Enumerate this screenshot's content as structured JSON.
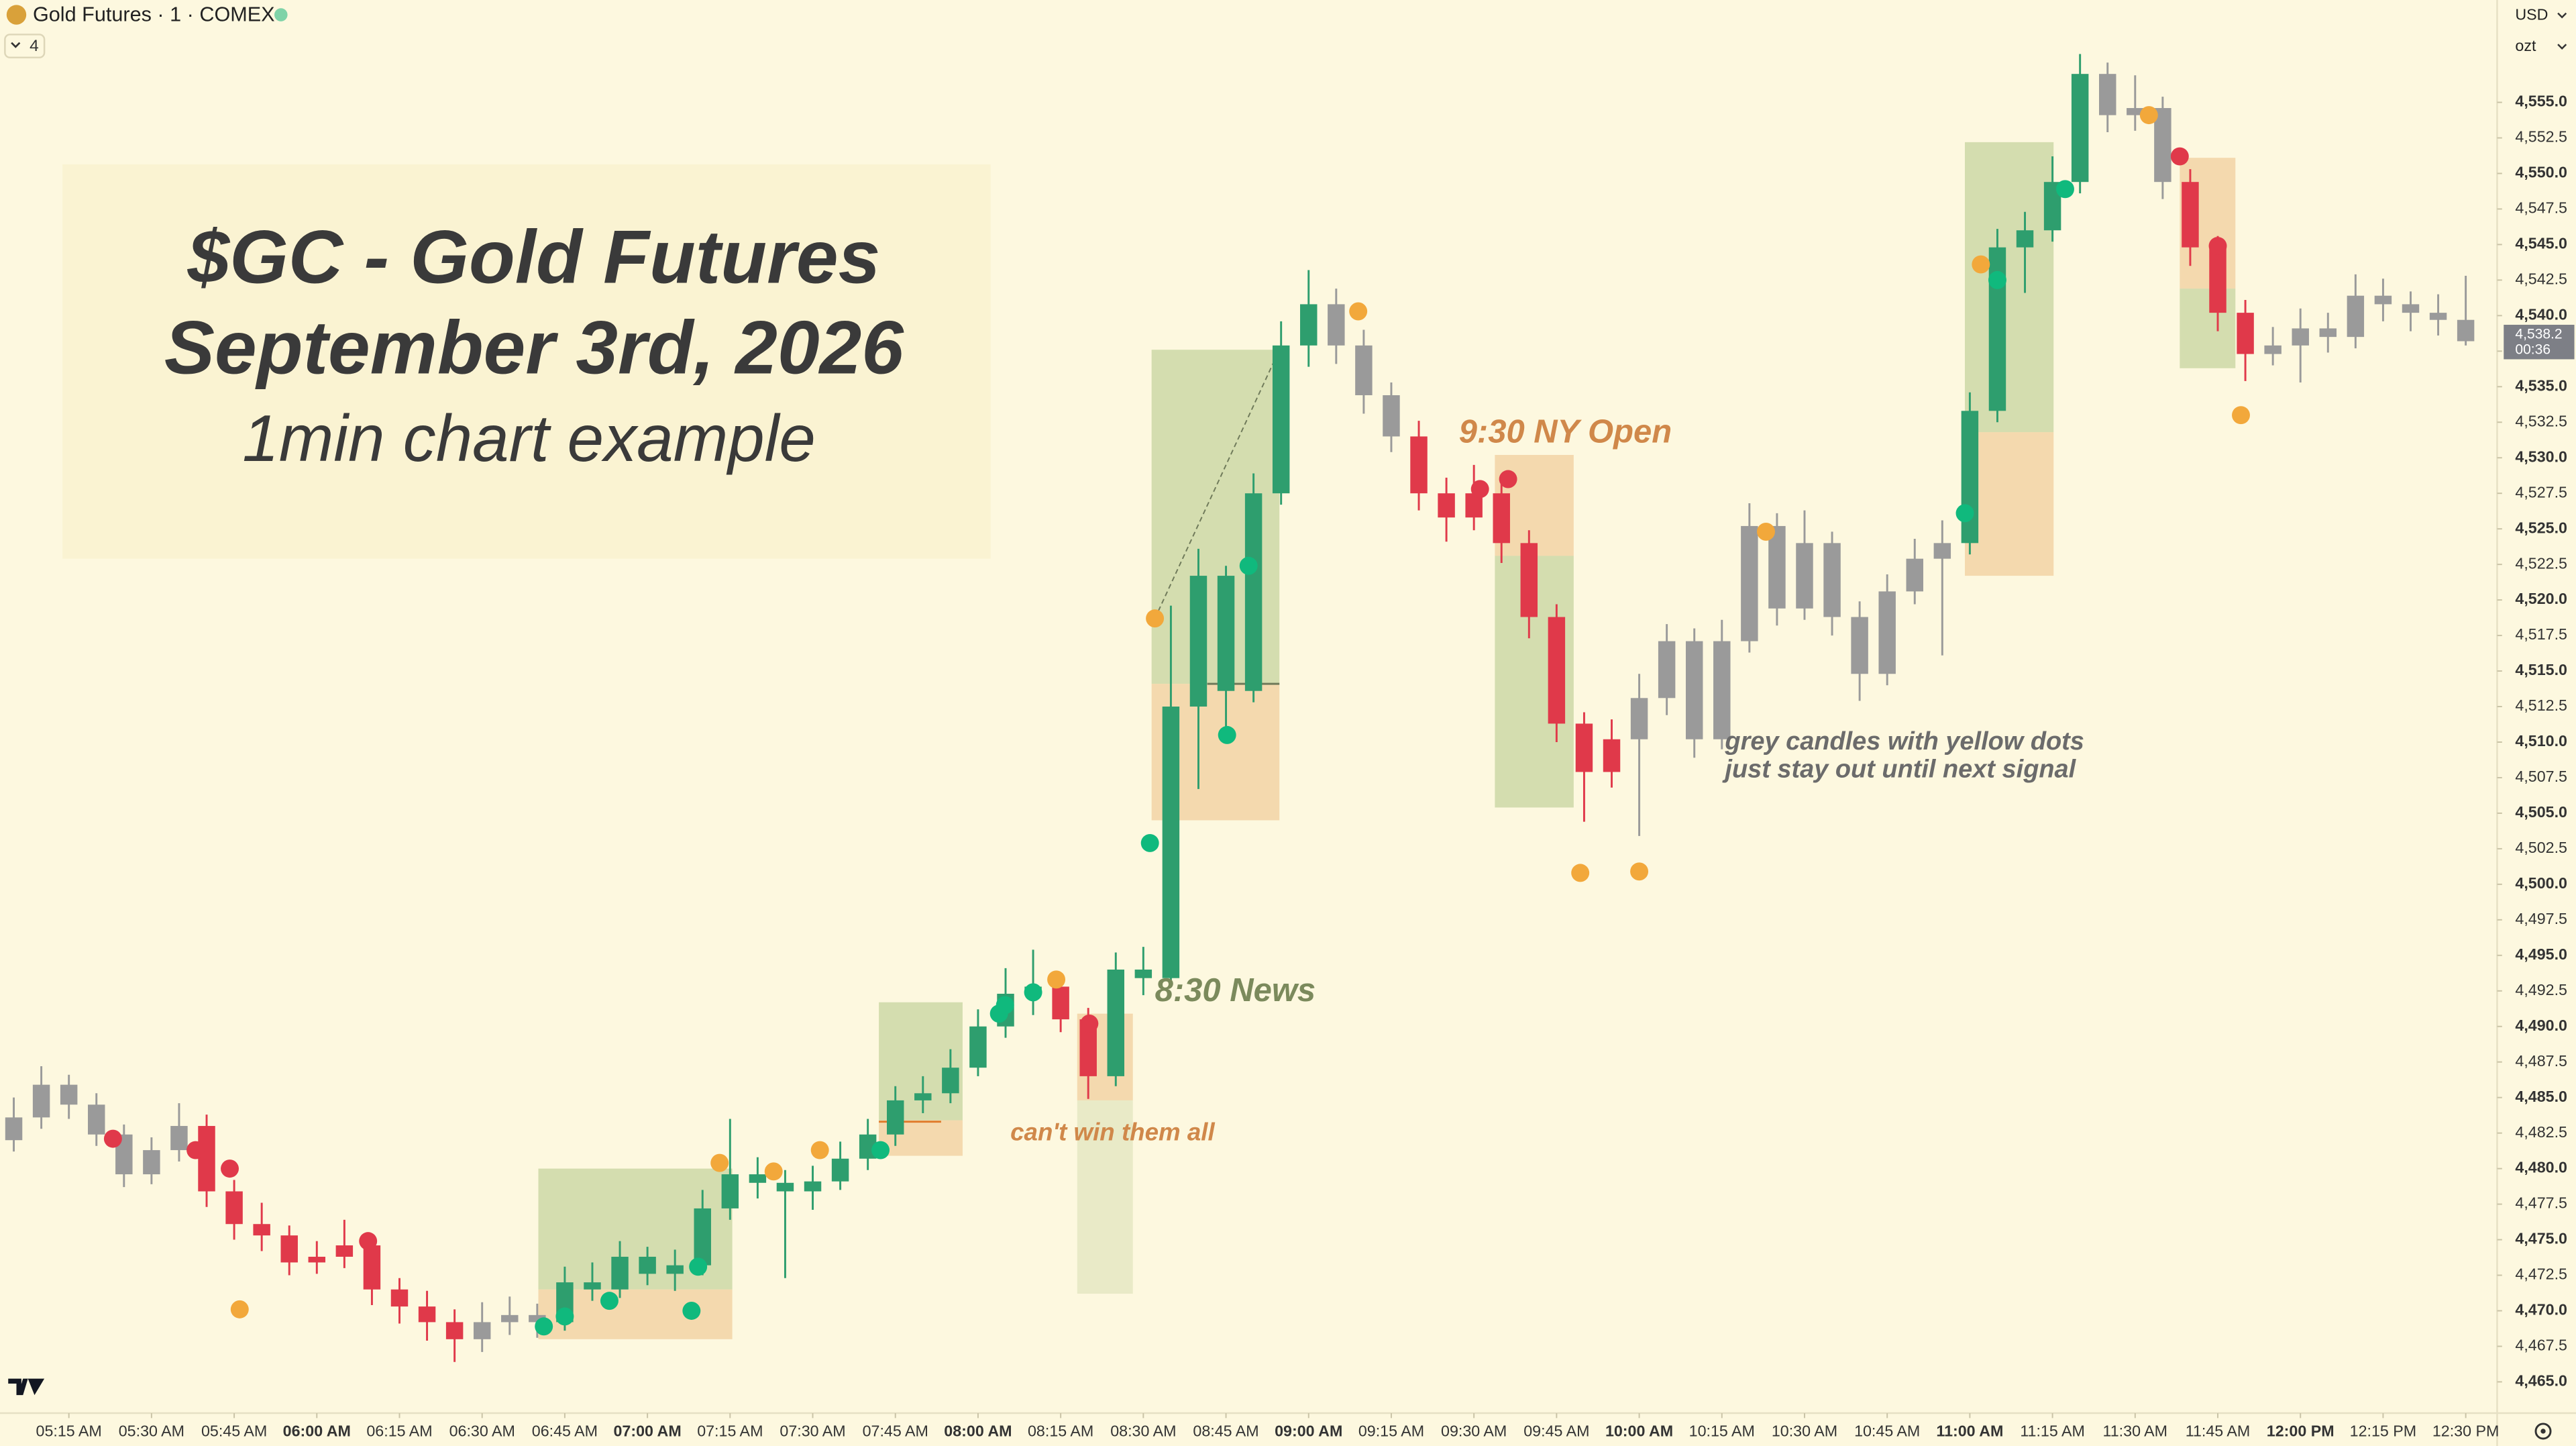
{
  "header": {
    "symbol": "Gold Futures · 1 · COMEX",
    "indicator_count": "4",
    "currency": "USD",
    "unit": "ozt"
  },
  "title_lines": [
    "$GC - Gold Futures",
    "September 3rd, 2026"
  ],
  "subtitle": "1min chart example",
  "annotations": [
    "8:30 News",
    "can't win them all",
    "9:30 NY Open",
    "grey candles with yellow dots",
    "just stay out until next signal"
  ],
  "chart_data": {
    "type": "candlestick",
    "xlim": [
      302.5,
      755.7
    ],
    "ylim": [
      4462.8,
      4562.2
    ],
    "colors": {
      "u": "#2e9e6e",
      "r": "#e0394a",
      "n": "#9a9a9a"
    },
    "x": [
      305,
      310,
      315,
      320,
      325,
      330,
      335,
      340,
      345,
      350,
      355,
      360,
      365,
      370,
      375,
      380,
      385,
      390,
      395,
      400,
      405,
      410,
      415,
      420,
      425,
      430,
      435,
      440,
      445,
      450,
      455,
      460,
      465,
      470,
      475,
      480,
      485,
      490,
      495,
      500,
      505,
      510,
      515,
      520,
      525,
      530,
      535,
      540,
      545,
      550,
      555,
      560,
      565,
      570,
      575,
      580,
      585,
      590,
      595,
      600,
      605,
      610,
      615,
      620,
      625,
      630,
      635,
      640,
      645,
      650,
      655,
      660,
      665,
      670,
      675,
      680,
      685,
      690,
      695,
      700,
      705,
      710,
      715,
      720,
      725,
      730,
      735,
      740,
      745,
      750
    ],
    "ohlc": [
      [
        4482.0,
        4485.0,
        4481.2,
        4483.6
      ],
      [
        4483.6,
        4487.2,
        4482.8,
        4485.9
      ],
      [
        4485.9,
        4486.6,
        4483.5,
        4484.5
      ],
      [
        4484.5,
        4485.3,
        4481.6,
        4482.4
      ],
      [
        4482.4,
        4483.1,
        4478.7,
        4479.6
      ],
      [
        4479.6,
        4482.2,
        4478.9,
        4481.3
      ],
      [
        4481.3,
        4484.6,
        4480.5,
        4483.0
      ],
      [
        4483.0,
        4483.8,
        4477.3,
        4478.4
      ],
      [
        4478.4,
        4479.2,
        4475.0,
        4476.1
      ],
      [
        4476.1,
        4477.6,
        4474.2,
        4475.3
      ],
      [
        4475.3,
        4476.0,
        4472.5,
        4473.4
      ],
      [
        4473.4,
        4474.9,
        4472.6,
        4473.8
      ],
      [
        4473.8,
        4476.4,
        4473.0,
        4474.6
      ],
      [
        4474.6,
        4475.2,
        4470.4,
        4471.5
      ],
      [
        4471.5,
        4472.3,
        4469.1,
        4470.3
      ],
      [
        4470.3,
        4471.4,
        4467.9,
        4469.2
      ],
      [
        4469.2,
        4470.1,
        4466.4,
        4468.0
      ],
      [
        4468.0,
        4470.6,
        4467.1,
        4469.2
      ],
      [
        4469.2,
        4471.0,
        4468.3,
        4469.7
      ],
      [
        4469.7,
        4470.5,
        4468.1,
        4469.2
      ],
      [
        4469.2,
        4473.1,
        4468.6,
        4472.0
      ],
      [
        4472.0,
        4473.4,
        4470.7,
        4471.5
      ],
      [
        4471.5,
        4474.9,
        4470.9,
        4473.8
      ],
      [
        4473.8,
        4474.5,
        4471.8,
        4472.6
      ],
      [
        4472.6,
        4474.3,
        4471.4,
        4473.2
      ],
      [
        4473.2,
        4478.5,
        4472.5,
        4477.2
      ],
      [
        4477.2,
        4483.5,
        4476.4,
        4479.6
      ],
      [
        4479.6,
        4480.8,
        4477.9,
        4479.0
      ],
      [
        4479.0,
        4479.9,
        4472.3,
        4478.4
      ],
      [
        4478.4,
        4480.2,
        4477.1,
        4479.1
      ],
      [
        4479.1,
        4481.9,
        4478.5,
        4480.7
      ],
      [
        4480.7,
        4483.5,
        4479.9,
        4482.4
      ],
      [
        4482.4,
        4485.8,
        4481.6,
        4484.8
      ],
      [
        4484.8,
        4486.5,
        4483.9,
        4485.3
      ],
      [
        4485.3,
        4488.4,
        4484.6,
        4487.1
      ],
      [
        4487.1,
        4491.2,
        4486.5,
        4490.0
      ],
      [
        4490.0,
        4494.1,
        4489.2,
        4492.3
      ],
      [
        4492.3,
        4495.4,
        4490.8,
        4492.8
      ],
      [
        4492.8,
        4493.7,
        4489.6,
        4490.5
      ],
      [
        4490.5,
        4491.3,
        4484.9,
        4486.5
      ],
      [
        4486.5,
        4495.2,
        4485.8,
        4494.0
      ],
      [
        4494.0,
        4495.6,
        4492.2,
        4493.4
      ],
      [
        4493.4,
        4519.6,
        4493.0,
        4512.5
      ],
      [
        4512.5,
        4523.6,
        4506.7,
        4521.7
      ],
      [
        4521.7,
        4522.4,
        4510.2,
        4513.6
      ],
      [
        4513.6,
        4528.9,
        4512.8,
        4527.5
      ],
      [
        4527.5,
        4539.6,
        4526.7,
        4537.9
      ],
      [
        4537.9,
        4543.2,
        4536.4,
        4540.8
      ],
      [
        4540.8,
        4541.9,
        4536.6,
        4537.9
      ],
      [
        4537.9,
        4539.0,
        4533.1,
        4534.4
      ],
      [
        4534.4,
        4535.3,
        4530.4,
        4531.5
      ],
      [
        4531.5,
        4532.6,
        4526.3,
        4527.5
      ],
      [
        4527.5,
        4528.6,
        4524.1,
        4525.8
      ],
      [
        4525.8,
        4529.5,
        4524.9,
        4527.5
      ],
      [
        4527.5,
        4528.7,
        4522.6,
        4524.0
      ],
      [
        4524.0,
        4524.9,
        4517.3,
        4518.8
      ],
      [
        4518.8,
        4519.7,
        4510.0,
        4511.3
      ],
      [
        4511.3,
        4512.1,
        4504.4,
        4507.9
      ],
      [
        4507.9,
        4511.6,
        4506.8,
        4510.2
      ],
      [
        4510.2,
        4514.8,
        4503.4,
        4513.1
      ],
      [
        4513.1,
        4518.3,
        4511.9,
        4517.1
      ],
      [
        4517.1,
        4518.0,
        4508.9,
        4510.2
      ],
      [
        4510.2,
        4518.6,
        4509.5,
        4517.1
      ],
      [
        4517.1,
        4526.8,
        4516.3,
        4525.2
      ],
      [
        4525.2,
        4526.1,
        4518.2,
        4519.4
      ],
      [
        4519.4,
        4526.3,
        4518.6,
        4524.0
      ],
      [
        4524.0,
        4524.8,
        4517.5,
        4518.8
      ],
      [
        4518.8,
        4519.9,
        4512.9,
        4514.8
      ],
      [
        4514.8,
        4521.8,
        4514.0,
        4520.6
      ],
      [
        4520.6,
        4524.3,
        4519.7,
        4522.9
      ],
      [
        4522.9,
        4525.6,
        4516.1,
        4524.0
      ],
      [
        4524.0,
        4534.6,
        4523.2,
        4533.3
      ],
      [
        4533.3,
        4546.1,
        4532.5,
        4544.8
      ],
      [
        4544.8,
        4547.3,
        4541.6,
        4546.0
      ],
      [
        4546.0,
        4551.2,
        4545.2,
        4549.4
      ],
      [
        4549.4,
        4558.4,
        4548.6,
        4557.0
      ],
      [
        4557.0,
        4557.8,
        4552.9,
        4554.1
      ],
      [
        4554.1,
        4556.9,
        4553.0,
        4554.6
      ],
      [
        4554.6,
        4555.4,
        4548.2,
        4549.4
      ],
      [
        4549.4,
        4550.3,
        4543.5,
        4544.8
      ],
      [
        4544.8,
        4545.6,
        4538.9,
        4540.2
      ],
      [
        4540.2,
        4541.1,
        4535.4,
        4537.3
      ],
      [
        4537.3,
        4539.2,
        4536.5,
        4537.9
      ],
      [
        4537.9,
        4540.5,
        4535.3,
        4539.1
      ],
      [
        4539.1,
        4540.2,
        4537.4,
        4538.5
      ],
      [
        4538.5,
        4542.9,
        4537.7,
        4541.4
      ],
      [
        4541.4,
        4542.6,
        4539.6,
        4540.8
      ],
      [
        4540.8,
        4541.7,
        4538.9,
        4540.2
      ],
      [
        4540.2,
        4541.5,
        4538.6,
        4539.7
      ],
      [
        4539.7,
        4542.8,
        4537.9,
        4538.2
      ]
    ],
    "states": [
      "n",
      "n",
      "n",
      "n",
      "n",
      "n",
      "n",
      "r",
      "r",
      "r",
      "r",
      "r",
      "r",
      "r",
      "r",
      "r",
      "r",
      "n",
      "n",
      "n",
      "u",
      "u",
      "u",
      "u",
      "u",
      "u",
      "u",
      "u",
      "u",
      "u",
      "u",
      "u",
      "u",
      "u",
      "u",
      "u",
      "u",
      "u",
      "r",
      "r",
      "u",
      "u",
      "u",
      "u",
      "u",
      "u",
      "u",
      "u",
      "n",
      "n",
      "n",
      "r",
      "r",
      "r",
      "r",
      "r",
      "r",
      "r",
      "r",
      "n",
      "n",
      "n",
      "n",
      "n",
      "n",
      "n",
      "n",
      "n",
      "n",
      "n",
      "n",
      "u",
      "u",
      "u",
      "u",
      "u",
      "n",
      "n",
      "n",
      "r",
      "r",
      "r",
      "n",
      "n",
      "n",
      "n",
      "n",
      "n",
      "n",
      "n"
    ],
    "signals": [
      {
        "color": "#e0394a",
        "x": [
          323.0,
          338.0,
          344.2,
          369.3,
          500.2,
          571.1,
          576.2,
          698.1,
          705.0
        ],
        "y": [
          4482.1,
          4481.3,
          4480.0,
          4474.9,
          4490.2,
          4527.8,
          4528.5,
          4551.2,
          4544.9
        ]
      },
      {
        "color": "#10b97d",
        "x": [
          401.2,
          405.0,
          413.1,
          428.0,
          429.2,
          462.3,
          483.8,
          484.9,
          490.0,
          511.2,
          525.2,
          529.1,
          659.1,
          665.0,
          677.3
        ],
        "y": [
          4468.9,
          4469.6,
          4470.7,
          4470.0,
          4473.1,
          4481.3,
          4490.9,
          4491.5,
          4492.4,
          4502.9,
          4510.5,
          4522.4,
          4526.1,
          4542.5,
          4548.9
        ]
      },
      {
        "color": "#f2a83b",
        "x": [
          346.0,
          433.1,
          442.9,
          451.3,
          494.2,
          512.1,
          549.0,
          589.3,
          600.0,
          623.0,
          662.0,
          692.5,
          709.2
        ],
        "y": [
          4470.1,
          4480.4,
          4479.8,
          4481.3,
          4493.3,
          4518.7,
          4540.3,
          4500.8,
          4500.9,
          4524.8,
          4543.6,
          4554.1,
          4533.0
        ]
      }
    ],
    "zones": [
      {
        "x": [
          400.2,
          435.4
        ],
        "y": [
          4471.5,
          4480.0
        ],
        "color": "#c2d29a"
      },
      {
        "x": [
          400.2,
          435.4
        ],
        "y": [
          4468.0,
          4471.5
        ],
        "color": "#f0cc98"
      },
      {
        "x": [
          462.0,
          477.2
        ],
        "y": [
          4483.4,
          4491.7
        ],
        "color": "#c2d29a"
      },
      {
        "x": [
          462.0,
          477.2
        ],
        "y": [
          4480.9,
          4483.4
        ],
        "color": "#f0cc98"
      },
      {
        "x": [
          498.0,
          508.1
        ],
        "y": [
          4484.8,
          4490.9
        ],
        "color": "#f0cc98"
      },
      {
        "x": [
          498.0,
          508.1
        ],
        "y": [
          4471.2,
          4484.8
        ],
        "color": "#e0e4bc"
      },
      {
        "x": [
          511.5,
          534.7
        ],
        "y": [
          4514.1,
          4537.6
        ],
        "color": "#c2d29a"
      },
      {
        "x": [
          511.5,
          534.7
        ],
        "y": [
          4504.5,
          4514.1
        ],
        "color": "#f0cc98"
      },
      {
        "x": [
          573.8,
          588.1
        ],
        "y": [
          4523.1,
          4530.2
        ],
        "color": "#f0cc98"
      },
      {
        "x": [
          573.8,
          588.1
        ],
        "y": [
          4505.4,
          4523.1
        ],
        "color": "#c2d29a"
      },
      {
        "x": [
          659.1,
          675.2
        ],
        "y": [
          4531.8,
          4552.2
        ],
        "color": "#c2d29a"
      },
      {
        "x": [
          659.1,
          675.2
        ],
        "y": [
          4521.7,
          4531.8
        ],
        "color": "#f0cc98"
      },
      {
        "x": [
          698.1,
          708.2
        ],
        "y": [
          4541.9,
          4551.1
        ],
        "color": "#f0cc98"
      },
      {
        "x": [
          698.1,
          708.2
        ],
        "y": [
          4536.3,
          4541.9
        ],
        "color": "#c2d29a"
      }
    ],
    "lines": [
      {
        "x": [
          462.0,
          473.3
        ],
        "y": [
          4483.3,
          4483.3
        ],
        "color": "#e07a2a",
        "dash": false
      },
      {
        "x": [
          521.6,
          534.7
        ],
        "y": [
          4514.1,
          4514.1
        ],
        "color": "#6f7a5a",
        "dash": false
      },
      {
        "x": [
          512.1,
          534.7
        ],
        "y": [
          4518.7,
          4537.6
        ],
        "color": "#6f7a5a",
        "dash": true
      }
    ],
    "last_price": {
      "value": 4538.2,
      "label": "4,538.2"
    },
    "countdown": "00:36",
    "xticks": [
      {
        "value": 315,
        "label": "05:15 AM"
      },
      {
        "value": 330,
        "label": "05:30 AM"
      },
      {
        "value": 345,
        "label": "05:45 AM"
      },
      {
        "value": 360,
        "label": "06:00 AM"
      },
      {
        "value": 375,
        "label": "06:15 AM"
      },
      {
        "value": 390,
        "label": "06:30 AM"
      },
      {
        "value": 405,
        "label": "06:45 AM"
      },
      {
        "value": 420,
        "label": "07:00 AM"
      },
      {
        "value": 435,
        "label": "07:15 AM"
      },
      {
        "value": 450,
        "label": "07:30 AM"
      },
      {
        "value": 465,
        "label": "07:45 AM"
      },
      {
        "value": 480,
        "label": "08:00 AM"
      },
      {
        "value": 495,
        "label": "08:15 AM"
      },
      {
        "value": 510,
        "label": "08:30 AM"
      },
      {
        "value": 525,
        "label": "08:45 AM"
      },
      {
        "value": 540,
        "label": "09:00 AM"
      },
      {
        "value": 555,
        "label": "09:15 AM"
      },
      {
        "value": 570,
        "label": "09:30 AM"
      },
      {
        "value": 585,
        "label": "09:45 AM"
      },
      {
        "value": 600,
        "label": "10:00 AM"
      },
      {
        "value": 615,
        "label": "10:15 AM"
      },
      {
        "value": 630,
        "label": "10:30 AM"
      },
      {
        "value": 645,
        "label": "10:45 AM"
      },
      {
        "value": 660,
        "label": "11:00 AM"
      },
      {
        "value": 675,
        "label": "11:15 AM"
      },
      {
        "value": 690,
        "label": "11:30 AM"
      },
      {
        "value": 705,
        "label": "11:45 AM"
      },
      {
        "value": 720,
        "label": "12:00 PM"
      },
      {
        "value": 735,
        "label": "12:15 PM"
      },
      {
        "value": 750,
        "label": "12:30 PM"
      }
    ],
    "yticks": [
      {
        "value": 4465,
        "label": "4,465.0"
      },
      {
        "value": 4467.5,
        "label": "4,467.5"
      },
      {
        "value": 4470,
        "label": "4,470.0"
      },
      {
        "value": 4472.5,
        "label": "4,472.5"
      },
      {
        "value": 4475,
        "label": "4,475.0"
      },
      {
        "value": 4477.5,
        "label": "4,477.5"
      },
      {
        "value": 4480,
        "label": "4,480.0"
      },
      {
        "value": 4482.5,
        "label": "4,482.5"
      },
      {
        "value": 4485,
        "label": "4,485.0"
      },
      {
        "value": 4487.5,
        "label": "4,487.5"
      },
      {
        "value": 4490,
        "label": "4,490.0"
      },
      {
        "value": 4492.5,
        "label": "4,492.5"
      },
      {
        "value": 4495,
        "label": "4,495.0"
      },
      {
        "value": 4497.5,
        "label": "4,497.5"
      },
      {
        "value": 4500,
        "label": "4,500.0"
      },
      {
        "value": 4502.5,
        "label": "4,502.5"
      },
      {
        "value": 4505,
        "label": "4,505.0"
      },
      {
        "value": 4507.5,
        "label": "4,507.5"
      },
      {
        "value": 4510,
        "label": "4,510.0"
      },
      {
        "value": 4512.5,
        "label": "4,512.5"
      },
      {
        "value": 4515,
        "label": "4,515.0"
      },
      {
        "value": 4517.5,
        "label": "4,517.5"
      },
      {
        "value": 4520,
        "label": "4,520.0"
      },
      {
        "value": 4522.5,
        "label": "4,522.5"
      },
      {
        "value": 4525,
        "label": "4,525.0"
      },
      {
        "value": 4527.5,
        "label": "4,527.5"
      },
      {
        "value": 4530,
        "label": "4,530.0"
      },
      {
        "value": 4532.5,
        "label": "4,532.5"
      },
      {
        "value": 4535,
        "label": "4,535.0"
      },
      {
        "value": 4537.5,
        "label": "4,537.5"
      },
      {
        "value": 4540,
        "label": "4,540.0"
      },
      {
        "value": 4542.5,
        "label": "4,542.5"
      },
      {
        "value": 4545,
        "label": "4,545.0"
      },
      {
        "value": 4547.5,
        "label": "4,547.5"
      },
      {
        "value": 4550,
        "label": "4,550.0"
      },
      {
        "value": 4552.5,
        "label": "4,552.5"
      },
      {
        "value": 4555,
        "label": "4,555.0"
      }
    ]
  }
}
